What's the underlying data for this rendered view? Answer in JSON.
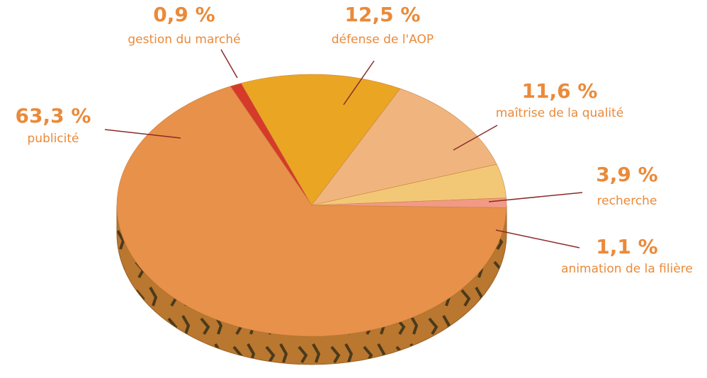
{
  "chart_data": {
    "type": "pie",
    "categories": [
      "publicité",
      "gestion du marché",
      "défense de l'AOP",
      "maîtrise de la qualité",
      "recherche",
      "animation de la filière"
    ],
    "values": [
      63.3,
      0.9,
      12.5,
      11.6,
      3.9,
      1.1
    ],
    "value_labels": [
      "63,3 %",
      "0,9 %",
      "12,5 %",
      "11,6 %",
      "3,9 %",
      "1,1 %"
    ],
    "colors": [
      "#e8914a",
      "#d63a2a",
      "#eaa623",
      "#f0b57e",
      "#f2c877",
      "#f29a86"
    ]
  }
}
